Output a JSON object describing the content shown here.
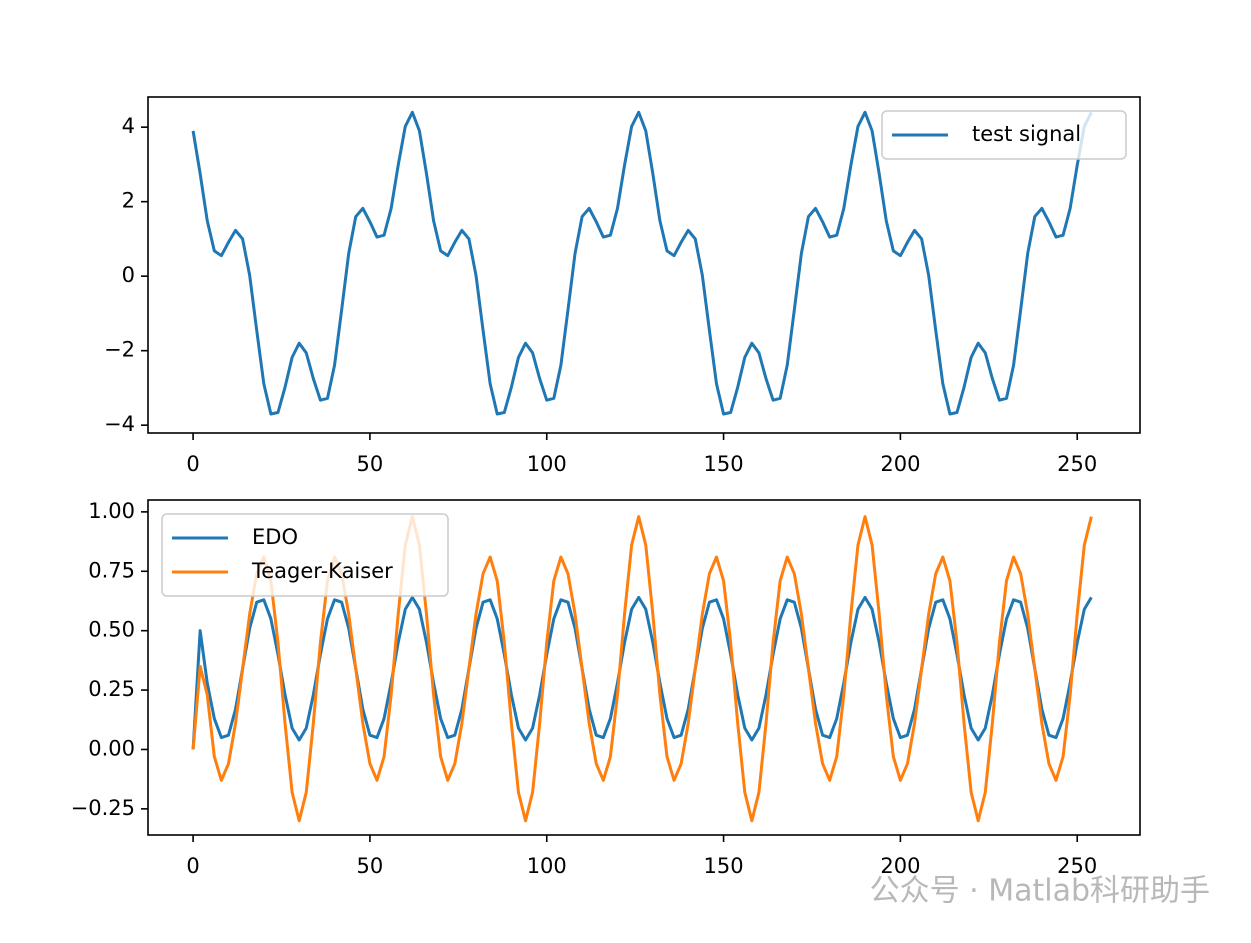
{
  "chart_data": [
    {
      "type": "line",
      "x": [
        0,
        2,
        4,
        6,
        8,
        10,
        12,
        14,
        16,
        18,
        20,
        22,
        24,
        26,
        28,
        30,
        32,
        34,
        36,
        38,
        40,
        42,
        44,
        46,
        48,
        50,
        52,
        54,
        56,
        58,
        60,
        62,
        64,
        66,
        68,
        70,
        72,
        74,
        76,
        78,
        80,
        82,
        84,
        86,
        88,
        90,
        92,
        94,
        96,
        98,
        100,
        102,
        104,
        106,
        108,
        110,
        112,
        114,
        116,
        118,
        120,
        122,
        124,
        126,
        128,
        130,
        132,
        134,
        136,
        138,
        140,
        142,
        144,
        146,
        148,
        150,
        152,
        154,
        156,
        158,
        160,
        162,
        164,
        166,
        168,
        170,
        172,
        174,
        176,
        178,
        180,
        182,
        184,
        186,
        188,
        190,
        192,
        194,
        196,
        198,
        200,
        202,
        204,
        206,
        208,
        210,
        212,
        214,
        216,
        218,
        220,
        222,
        224,
        226,
        228,
        230,
        232,
        234,
        236,
        238,
        240,
        242,
        244,
        246,
        248,
        250,
        252,
        254
      ],
      "series": [
        {
          "name": "test signal",
          "color": "#1f77b4",
          "values": [
            3.9,
            2.75,
            1.49,
            0.68,
            0.55,
            0.91,
            1.23,
            1,
            0.02,
            -1.46,
            -2.89,
            -3.7,
            -3.66,
            -2.98,
            -2.18,
            -1.8,
            -2.06,
            -2.75,
            -3.33,
            -3.28,
            -2.39,
            -0.91,
            0.61,
            1.6,
            1.82,
            1.46,
            1.05,
            1.1,
            1.82,
            2.98,
            4.02,
            4.4,
            3.9,
            2.75,
            1.49,
            0.68,
            0.55,
            0.91,
            1.23,
            1,
            0.02,
            -1.46,
            -2.89,
            -3.7,
            -3.66,
            -2.98,
            -2.18,
            -1.8,
            -2.06,
            -2.75,
            -3.33,
            -3.28,
            -2.39,
            -0.91,
            0.61,
            1.6,
            1.82,
            1.46,
            1.05,
            1.1,
            1.82,
            2.98,
            4.02,
            4.4,
            3.9,
            2.75,
            1.49,
            0.68,
            0.55,
            0.91,
            1.23,
            1,
            0.02,
            -1.46,
            -2.89,
            -3.7,
            -3.66,
            -2.98,
            -2.18,
            -1.8,
            -2.06,
            -2.75,
            -3.33,
            -3.28,
            -2.39,
            -0.91,
            0.61,
            1.6,
            1.82,
            1.46,
            1.05,
            1.1,
            1.82,
            2.98,
            4.02,
            4.4,
            3.9,
            2.75,
            1.49,
            0.68,
            0.55,
            0.91,
            1.23,
            1,
            0.02,
            -1.46,
            -2.89,
            -3.7,
            -3.66,
            -2.98,
            -2.18,
            -1.8,
            -2.06,
            -2.75,
            -3.33,
            -3.28,
            -2.39,
            -0.91,
            0.61,
            1.6,
            1.82,
            1.46,
            1.05,
            1.1,
            1.82,
            2.98,
            4.02,
            4.4
          ]
        }
      ],
      "xlim": [
        -12.75,
        267.75
      ],
      "xticks": [
        0,
        50,
        100,
        150,
        200,
        250
      ],
      "ylim": [
        -4.21,
        4.81
      ],
      "yticks": [
        {
          "value": -4,
          "label": "−4"
        },
        {
          "value": -2,
          "label": "−2"
        },
        0,
        2,
        4
      ],
      "legend": "upper right"
    },
    {
      "type": "line",
      "x": [
        0,
        2,
        4,
        6,
        8,
        10,
        12,
        14,
        16,
        18,
        20,
        22,
        24,
        26,
        28,
        30,
        32,
        34,
        36,
        38,
        40,
        42,
        44,
        46,
        48,
        50,
        52,
        54,
        56,
        58,
        60,
        62,
        64,
        66,
        68,
        70,
        72,
        74,
        76,
        78,
        80,
        82,
        84,
        86,
        88,
        90,
        92,
        94,
        96,
        98,
        100,
        102,
        104,
        106,
        108,
        110,
        112,
        114,
        116,
        118,
        120,
        122,
        124,
        126,
        128,
        130,
        132,
        134,
        136,
        138,
        140,
        142,
        144,
        146,
        148,
        150,
        152,
        154,
        156,
        158,
        160,
        162,
        164,
        166,
        168,
        170,
        172,
        174,
        176,
        178,
        180,
        182,
        184,
        186,
        188,
        190,
        192,
        194,
        196,
        198,
        200,
        202,
        204,
        206,
        208,
        210,
        212,
        214,
        216,
        218,
        220,
        222,
        224,
        226,
        228,
        230,
        232,
        234,
        236,
        238,
        240,
        242,
        244,
        246,
        248,
        250,
        252,
        254
      ],
      "series": [
        {
          "name": "EDO",
          "color": "#1f77b4",
          "values": [
            0,
            0.5,
            0.28,
            0.13,
            0.05,
            0.06,
            0.17,
            0.34,
            0.51,
            0.62,
            0.63,
            0.55,
            0.4,
            0.23,
            0.09,
            0.04,
            0.09,
            0.23,
            0.4,
            0.55,
            0.63,
            0.62,
            0.51,
            0.34,
            0.17,
            0.06,
            0.05,
            0.13,
            0.28,
            0.45,
            0.59,
            0.64,
            0.59,
            0.45,
            0.28,
            0.13,
            0.05,
            0.06,
            0.17,
            0.34,
            0.51,
            0.62,
            0.63,
            0.55,
            0.4,
            0.23,
            0.09,
            0.04,
            0.09,
            0.23,
            0.4,
            0.55,
            0.63,
            0.62,
            0.51,
            0.34,
            0.17,
            0.06,
            0.05,
            0.13,
            0.28,
            0.45,
            0.59,
            0.64,
            0.59,
            0.45,
            0.28,
            0.13,
            0.05,
            0.06,
            0.17,
            0.34,
            0.51,
            0.62,
            0.63,
            0.55,
            0.4,
            0.23,
            0.09,
            0.04,
            0.09,
            0.23,
            0.4,
            0.55,
            0.63,
            0.62,
            0.51,
            0.34,
            0.17,
            0.06,
            0.05,
            0.13,
            0.28,
            0.45,
            0.59,
            0.64,
            0.59,
            0.45,
            0.28,
            0.13,
            0.05,
            0.06,
            0.17,
            0.34,
            0.51,
            0.62,
            0.63,
            0.55,
            0.4,
            0.23,
            0.09,
            0.04,
            0.09,
            0.23,
            0.4,
            0.55,
            0.63,
            0.62,
            0.51,
            0.34,
            0.17,
            0.06,
            0.05,
            0.13,
            0.28,
            0.45,
            0.59,
            0.64
          ]
        },
        {
          "name": "Teager-Kaiser",
          "color": "#ff7f0e",
          "values": [
            0,
            0.35,
            0.23,
            -0.03,
            -0.13,
            -0.06,
            0.11,
            0.34,
            0.57,
            0.74,
            0.81,
            0.71,
            0.45,
            0.11,
            -0.18,
            -0.3,
            -0.18,
            0.11,
            0.45,
            0.71,
            0.81,
            0.74,
            0.57,
            0.34,
            0.11,
            -0.06,
            -0.13,
            -0.03,
            0.23,
            0.57,
            0.86,
            0.98,
            0.86,
            0.57,
            0.23,
            -0.03,
            -0.13,
            -0.06,
            0.11,
            0.34,
            0.57,
            0.74,
            0.81,
            0.71,
            0.45,
            0.11,
            -0.18,
            -0.3,
            -0.18,
            0.11,
            0.45,
            0.71,
            0.81,
            0.74,
            0.57,
            0.34,
            0.11,
            -0.06,
            -0.13,
            -0.03,
            0.23,
            0.57,
            0.86,
            0.98,
            0.86,
            0.57,
            0.23,
            -0.03,
            -0.13,
            -0.06,
            0.11,
            0.34,
            0.57,
            0.74,
            0.81,
            0.71,
            0.45,
            0.11,
            -0.18,
            -0.3,
            -0.18,
            0.11,
            0.45,
            0.71,
            0.81,
            0.74,
            0.57,
            0.34,
            0.11,
            -0.06,
            -0.13,
            -0.03,
            0.23,
            0.57,
            0.86,
            0.98,
            0.86,
            0.57,
            0.23,
            -0.03,
            -0.13,
            -0.06,
            0.11,
            0.34,
            0.57,
            0.74,
            0.81,
            0.71,
            0.45,
            0.11,
            -0.18,
            -0.3,
            -0.18,
            0.11,
            0.45,
            0.71,
            0.81,
            0.74,
            0.57,
            0.34,
            0.11,
            -0.06,
            -0.13,
            -0.03,
            0.23,
            0.57,
            0.86,
            0.98
          ]
        }
      ],
      "xlim": [
        -12.75,
        267.75
      ],
      "xticks": [
        0,
        50,
        100,
        150,
        200,
        250
      ],
      "ylim": [
        -0.36,
        1.05
      ],
      "yticks": [
        {
          "value": -0.25,
          "label": "−0.25"
        },
        {
          "value": 0,
          "label": "0.00"
        },
        {
          "value": 0.25,
          "label": "0.25"
        },
        {
          "value": 0.5,
          "label": "0.50"
        },
        {
          "value": 0.75,
          "label": "0.75"
        },
        {
          "value": 1,
          "label": "1.00"
        }
      ],
      "legend": "upper left"
    }
  ],
  "watermark": "公众号 · Matlab科研助手"
}
